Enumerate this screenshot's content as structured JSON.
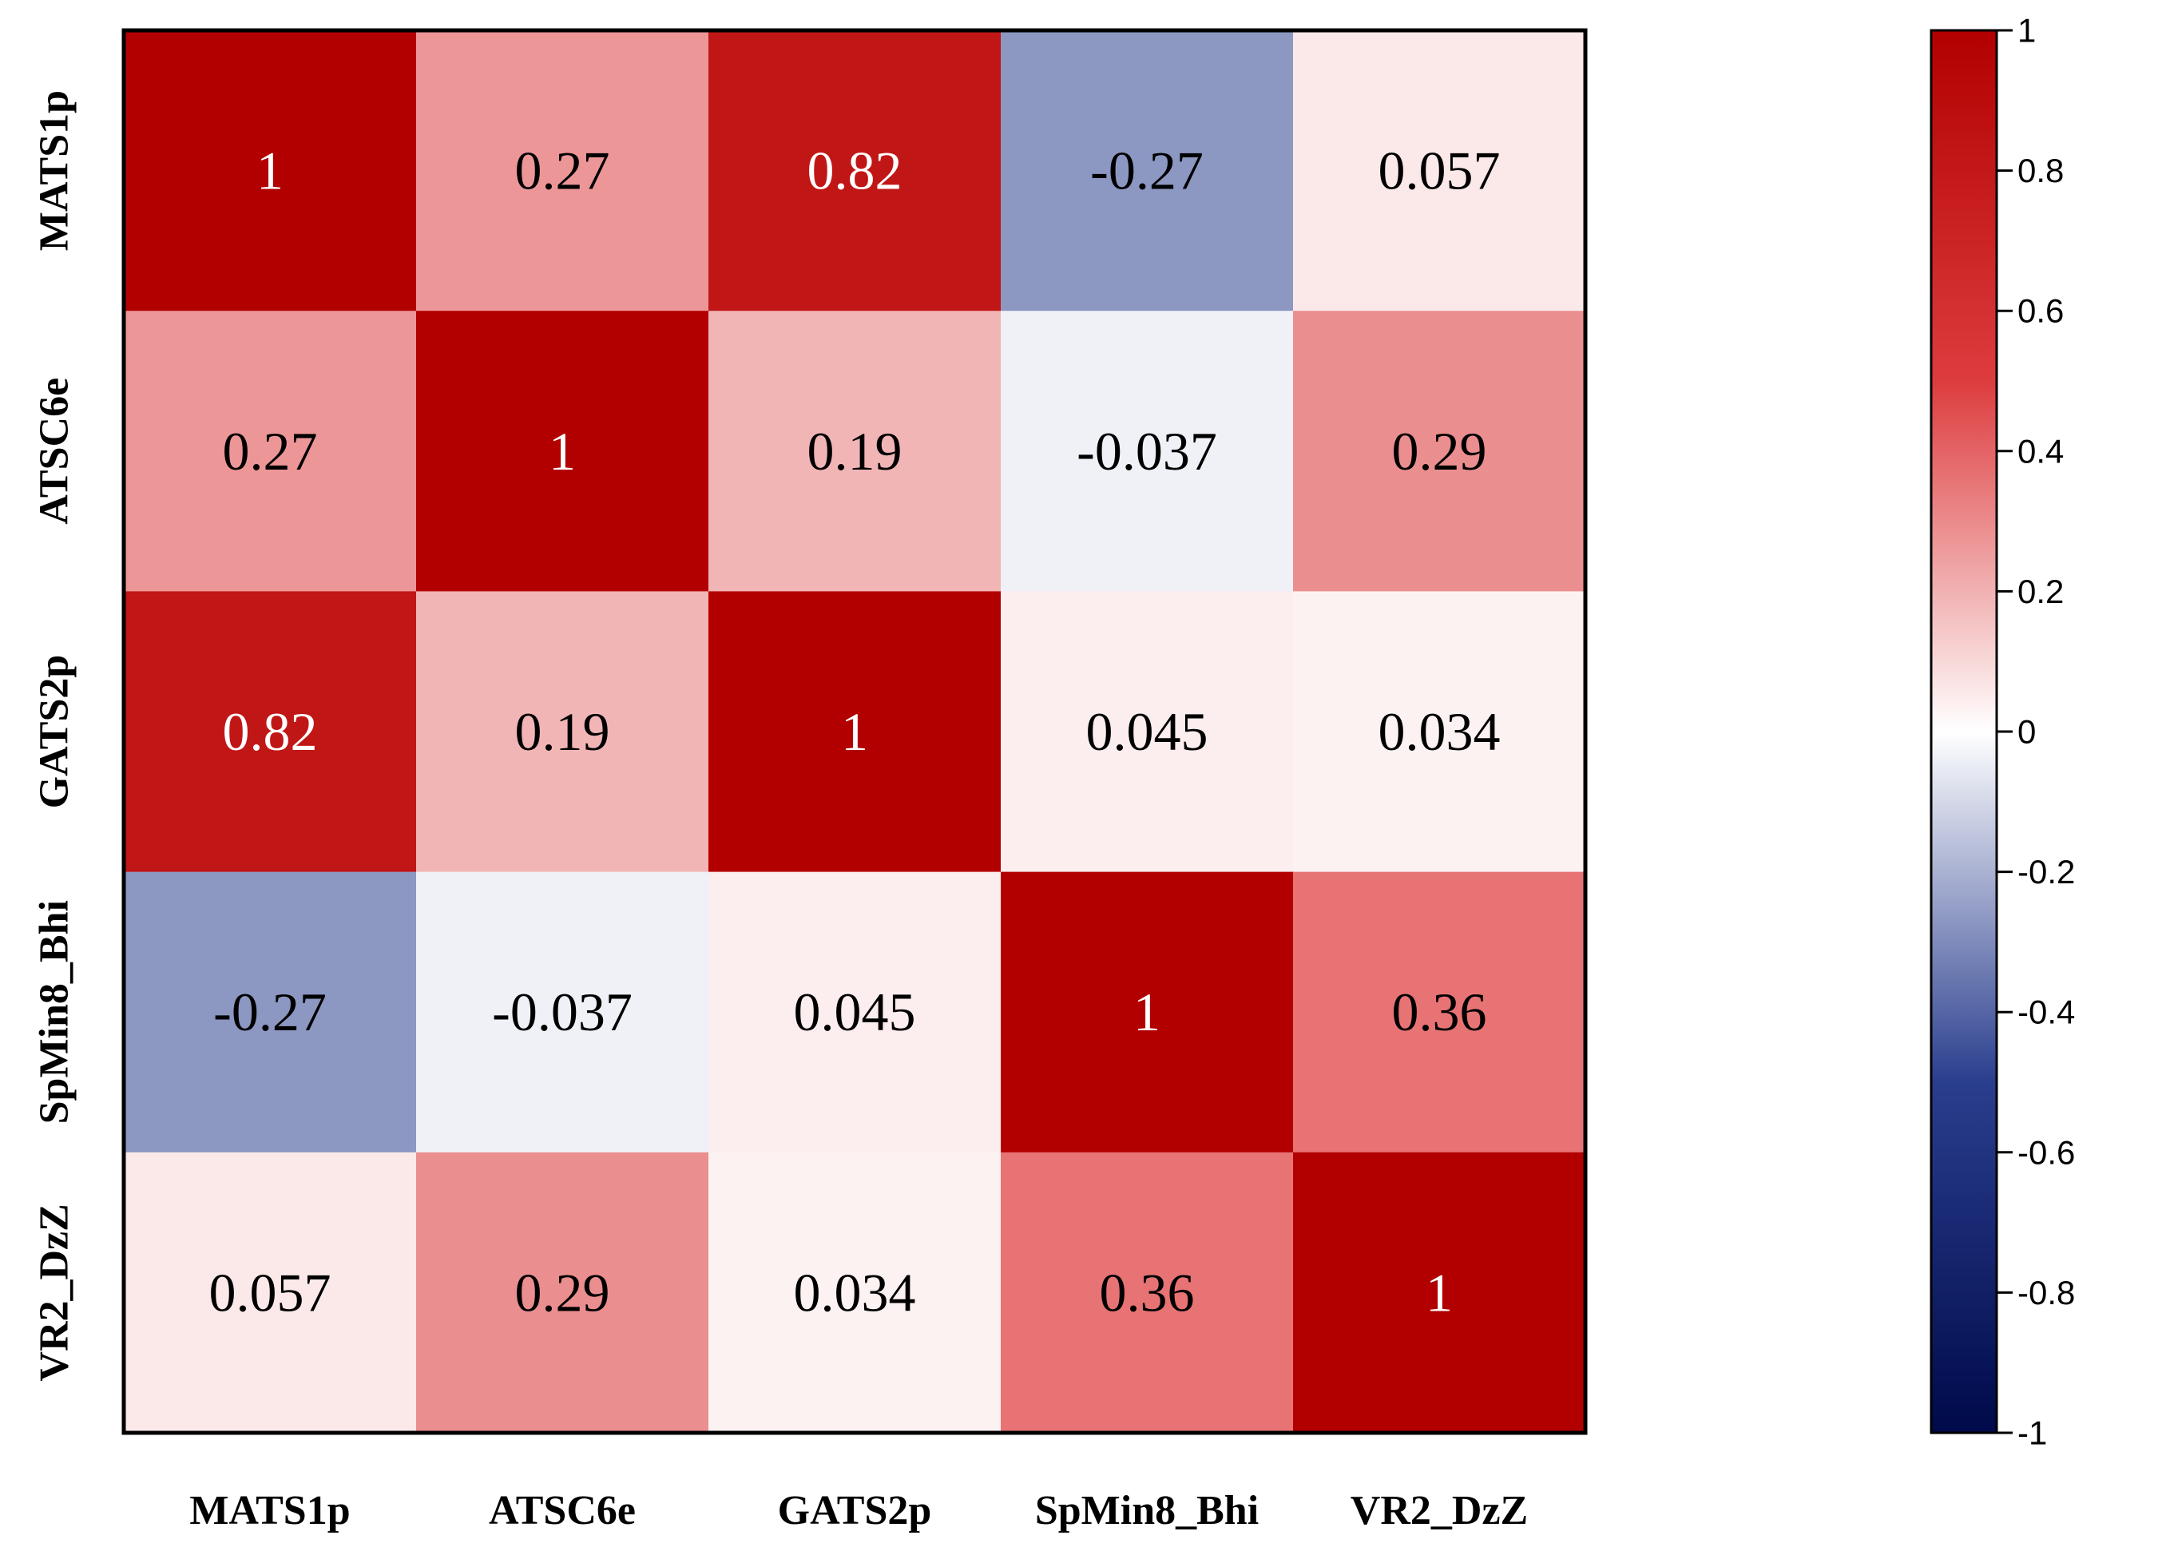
{
  "chart_data": {
    "type": "heatmap",
    "title": "",
    "variables": [
      "MATS1p",
      "ATSC6e",
      "GATS2p",
      "SpMin8_Bhi",
      "VR2_DzZ"
    ],
    "values": [
      [
        1,
        0.27,
        0.82,
        -0.27,
        0.057
      ],
      [
        0.27,
        1,
        0.19,
        -0.037,
        0.29
      ],
      [
        0.82,
        0.19,
        1,
        0.045,
        0.034
      ],
      [
        -0.27,
        -0.037,
        0.045,
        1,
        0.36
      ],
      [
        0.057,
        0.29,
        0.034,
        0.36,
        1
      ]
    ],
    "labels": [
      [
        "1",
        "0.27",
        "0.82",
        "-0.27",
        "0.057"
      ],
      [
        "0.27",
        "1",
        "0.19",
        "-0.037",
        "0.29"
      ],
      [
        "0.82",
        "0.19",
        "1",
        "0.045",
        "0.034"
      ],
      [
        "-0.27",
        "-0.037",
        "0.045",
        "1",
        "0.36"
      ],
      [
        "0.057",
        "0.29",
        "0.034",
        "0.36",
        "1"
      ]
    ],
    "colorbar": {
      "range": [
        -1,
        1
      ],
      "ticks": [
        1,
        0.8,
        0.6,
        0.4,
        0.2,
        0,
        -0.2,
        -0.4,
        -0.6,
        -0.8,
        -1
      ],
      "tick_labels": [
        "1",
        "0.8",
        "0.6",
        "0.4",
        "0.2",
        "0",
        "-0.2",
        "-0.4",
        "-0.6",
        "-0.8",
        "-1"
      ],
      "colors": {
        "low": "#000a4a",
        "mid_low": "#2a3e8e",
        "center": "#ffffff",
        "mid_high": "#dd3c3e",
        "high": "#b20000"
      }
    }
  }
}
